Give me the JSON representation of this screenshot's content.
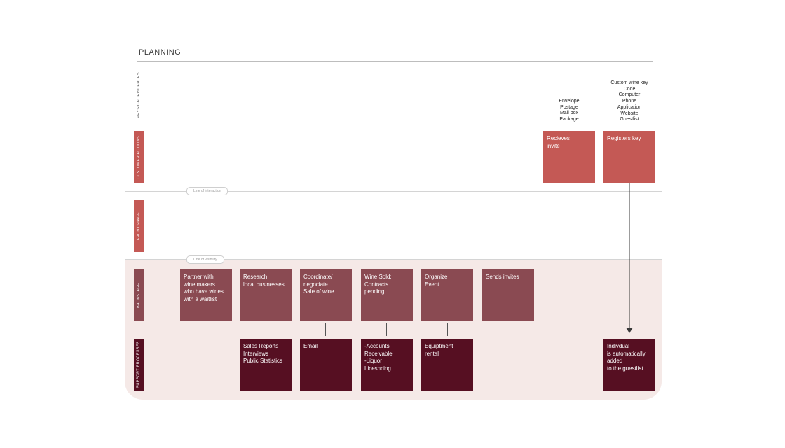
{
  "header": {
    "title": "PLANNING"
  },
  "lanes": {
    "physical_evidences": "PHYSICAL EVIDENCES",
    "customer_actions": "CUSTOMER ACTIONS",
    "frontstage": "FRONTSTAGE",
    "backstage": "BACKSTAGE",
    "support_processes": "SUPPORT PROCESSES"
  },
  "lines": {
    "interaction": "Line of interaction",
    "visibility": "Line of visibility"
  },
  "evidences": [
    {
      "text": "Envelope\nPostage\nMail box\nPackage"
    },
    {
      "text": "Custom wine key\nCode\nComputer\nPhone\nApplication\nWebsite\nGuestlist"
    }
  ],
  "customer_actions": [
    {
      "label": "Recieves\ninvite"
    },
    {
      "label": "Registers key"
    }
  ],
  "backstage": [
    {
      "label": "Partner with\nwine makers\nwho have wines\nwith a waitlist"
    },
    {
      "label": "Research\nlocal businesses"
    },
    {
      "label": "Coordinate/\nnegociate\nSale of wine"
    },
    {
      "label": "Wine Sold;\nContracts\npending"
    },
    {
      "label": "Organize\nEvent"
    },
    {
      "label": "Sends invites"
    }
  ],
  "support": [
    {
      "label": "Sales Reports\nInterviews\nPublic Statistics"
    },
    {
      "label": "Email"
    },
    {
      "label": "-Accounts\nReceivable\n-Liquor\nLicesncing"
    },
    {
      "label": "Equiptment\nrental"
    },
    {
      "label": "Indivdual\nis automatically\nadded\nto the guestlist"
    }
  ],
  "colors": {
    "customer": "#c45955",
    "backstage": "#8a4a52",
    "support": "#560f22",
    "backstage_bg": "#f5e9e7"
  }
}
